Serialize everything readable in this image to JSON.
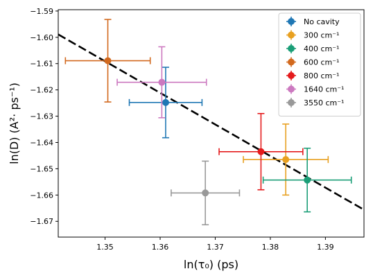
{
  "chart_data": {
    "type": "scatter",
    "xlabel": "ln(τ₀) (ps)",
    "ylabel": "ln(D) (A²· ps⁻¹)",
    "xlim": [
      1.3415,
      1.397
    ],
    "ylim": [
      -1.676,
      -1.5895
    ],
    "x_ticks": [
      1.35,
      1.36,
      1.37,
      1.38,
      1.39
    ],
    "x_tick_labels": [
      "1.35",
      "1.36",
      "1.37",
      "1.38",
      "1.39"
    ],
    "y_ticks": [
      -1.59,
      -1.6,
      -1.61,
      -1.62,
      -1.63,
      -1.64,
      -1.65,
      -1.66,
      -1.67
    ],
    "y_tick_labels": [
      "−1.59",
      "−1.60",
      "−1.61",
      "−1.62",
      "−1.63",
      "−1.64",
      "−1.65",
      "−1.66",
      "−1.67"
    ],
    "grid": false,
    "legend_position": "top-right",
    "series": [
      {
        "name": "No cavity",
        "color": "#1f77b4",
        "x": 1.361,
        "y": -1.6248,
        "xerr": 0.0066,
        "yerr": 0.0134
      },
      {
        "name": "300 cm⁻¹",
        "color": "#e8a020",
        "x": 1.3828,
        "y": -1.6465,
        "xerr": 0.0077,
        "yerr": 0.0135
      },
      {
        "name": "400 cm⁻¹",
        "color": "#1a9e77",
        "x": 1.3867,
        "y": -1.6543,
        "xerr": 0.008,
        "yerr": 0.0121
      },
      {
        "name": "600 cm⁻¹",
        "color": "#d2691e",
        "x": 1.3505,
        "y": -1.6089,
        "xerr": 0.0077,
        "yerr": 0.0157
      },
      {
        "name": "800 cm⁻¹",
        "color": "#e41a1c",
        "x": 1.3783,
        "y": -1.6435,
        "xerr": 0.0076,
        "yerr": 0.0145
      },
      {
        "name": "1640 cm⁻¹",
        "color": "#cc79c0",
        "x": 1.3603,
        "y": -1.6171,
        "xerr": 0.0081,
        "yerr": 0.0135
      },
      {
        "name": "3550 cm⁻¹",
        "color": "#999999",
        "x": 1.3682,
        "y": -1.6592,
        "xerr": 0.0062,
        "yerr": 0.0121
      }
    ],
    "fit_line": {
      "x": [
        1.3415,
        1.397
      ],
      "y": [
        -1.5989,
        -1.6656
      ],
      "color": "#000000",
      "style": "dashed"
    }
  }
}
